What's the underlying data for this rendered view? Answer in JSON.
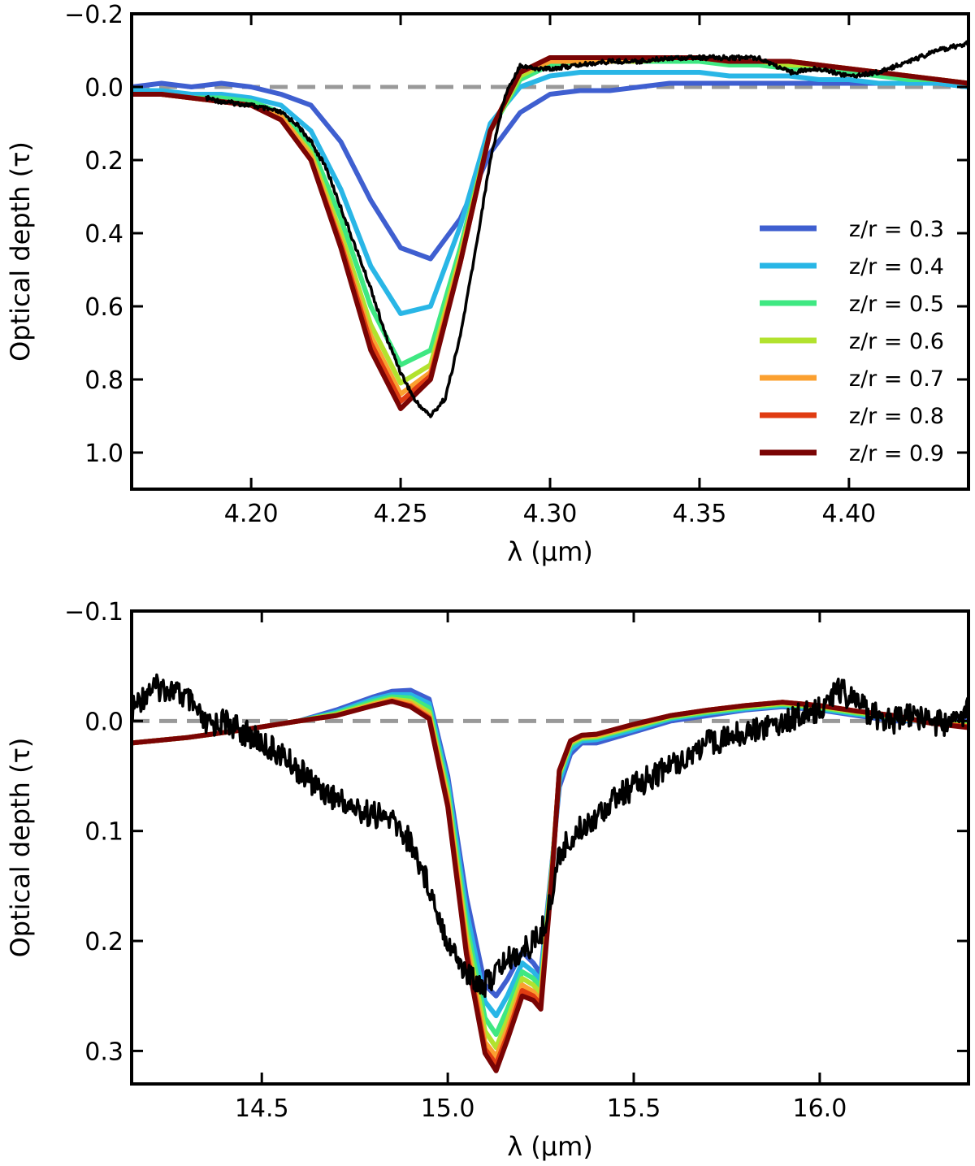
{
  "chart_data": [
    {
      "type": "line",
      "panel": "top",
      "xlabel": "λ (μm)",
      "ylabel": "Optical depth (τ)",
      "xlim": [
        4.16,
        4.44
      ],
      "ylim": [
        1.1,
        -0.2
      ],
      "y_inverted": true,
      "grid": false,
      "legend_position": "right",
      "xticks": [
        4.2,
        4.25,
        4.3,
        4.35,
        4.4
      ],
      "xtick_labels": [
        "4.20",
        "4.25",
        "4.30",
        "4.35",
        "4.40"
      ],
      "yticks": [
        -0.2,
        0.0,
        0.2,
        0.4,
        0.6,
        0.8,
        1.0
      ],
      "ytick_labels": [
        "−0.2",
        "0.0",
        "0.2",
        "0.4",
        "0.6",
        "0.8",
        "1.0"
      ],
      "reference_line": {
        "y": 0.0,
        "style": "dashed",
        "color": "#999999"
      },
      "model_x": [
        4.16,
        4.17,
        4.18,
        4.19,
        4.2,
        4.21,
        4.22,
        4.23,
        4.24,
        4.25,
        4.26,
        4.27,
        4.28,
        4.29,
        4.3,
        4.31,
        4.32,
        4.33,
        4.34,
        4.35,
        4.36,
        4.37,
        4.38,
        4.39,
        4.4,
        4.41,
        4.42,
        4.43,
        4.44
      ],
      "series": [
        {
          "name": "z/r = 0.3",
          "color": "#3f5fd0",
          "values": [
            0.0,
            -0.01,
            0.0,
            -0.01,
            0.0,
            0.02,
            0.05,
            0.15,
            0.31,
            0.44,
            0.47,
            0.36,
            0.18,
            0.07,
            0.02,
            0.01,
            0.01,
            0.0,
            -0.01,
            -0.01,
            -0.01,
            -0.01,
            -0.01,
            -0.01,
            -0.01,
            -0.01,
            -0.01,
            -0.01,
            0.0
          ]
        },
        {
          "name": "z/r = 0.4",
          "color": "#29b6e6",
          "values": [
            0.01,
            0.01,
            0.02,
            0.02,
            0.03,
            0.05,
            0.12,
            0.28,
            0.49,
            0.62,
            0.6,
            0.38,
            0.1,
            0.0,
            -0.03,
            -0.04,
            -0.04,
            -0.04,
            -0.04,
            -0.04,
            -0.03,
            -0.03,
            -0.03,
            -0.02,
            -0.02,
            -0.01,
            -0.01,
            -0.01,
            0.0
          ]
        },
        {
          "name": "z/r = 0.5",
          "color": "#3fe882",
          "values": [
            0.02,
            0.02,
            0.03,
            0.03,
            0.04,
            0.07,
            0.16,
            0.36,
            0.6,
            0.76,
            0.72,
            0.44,
            0.12,
            -0.02,
            -0.06,
            -0.07,
            -0.07,
            -0.07,
            -0.07,
            -0.07,
            -0.06,
            -0.06,
            -0.05,
            -0.05,
            -0.04,
            -0.03,
            -0.02,
            -0.02,
            -0.01
          ]
        },
        {
          "name": "z/r = 0.6",
          "color": "#b2e22e",
          "values": [
            0.02,
            0.02,
            0.03,
            0.04,
            0.05,
            0.08,
            0.18,
            0.4,
            0.65,
            0.81,
            0.76,
            0.46,
            0.12,
            -0.03,
            -0.07,
            -0.07,
            -0.07,
            -0.07,
            -0.08,
            -0.08,
            -0.07,
            -0.07,
            -0.06,
            -0.06,
            -0.05,
            -0.04,
            -0.03,
            -0.02,
            -0.01
          ]
        },
        {
          "name": "z/r = 0.7",
          "color": "#fba030",
          "values": [
            0.02,
            0.02,
            0.03,
            0.04,
            0.05,
            0.08,
            0.19,
            0.42,
            0.68,
            0.84,
            0.78,
            0.47,
            0.12,
            -0.04,
            -0.07,
            -0.07,
            -0.07,
            -0.08,
            -0.08,
            -0.08,
            -0.07,
            -0.07,
            -0.07,
            -0.06,
            -0.05,
            -0.04,
            -0.03,
            -0.02,
            -0.01
          ]
        },
        {
          "name": "z/r = 0.8",
          "color": "#e03c12",
          "values": [
            0.02,
            0.02,
            0.03,
            0.04,
            0.05,
            0.09,
            0.2,
            0.43,
            0.7,
            0.86,
            0.79,
            0.48,
            0.12,
            -0.04,
            -0.08,
            -0.08,
            -0.08,
            -0.08,
            -0.08,
            -0.08,
            -0.07,
            -0.07,
            -0.07,
            -0.06,
            -0.05,
            -0.04,
            -0.03,
            -0.02,
            -0.01
          ]
        },
        {
          "name": "z/r = 0.9",
          "color": "#7a0404",
          "values": [
            0.02,
            0.02,
            0.03,
            0.04,
            0.05,
            0.09,
            0.2,
            0.44,
            0.72,
            0.88,
            0.8,
            0.48,
            0.12,
            -0.04,
            -0.08,
            -0.08,
            -0.08,
            -0.08,
            -0.08,
            -0.08,
            -0.07,
            -0.07,
            -0.07,
            -0.06,
            -0.05,
            -0.04,
            -0.03,
            -0.02,
            -0.01
          ]
        }
      ],
      "observed": {
        "color": "#000000",
        "x": [
          4.185,
          4.19,
          4.2,
          4.21,
          4.215,
          4.22,
          4.225,
          4.23,
          4.235,
          4.24,
          4.245,
          4.25,
          4.255,
          4.26,
          4.265,
          4.27,
          4.275,
          4.28,
          4.285,
          4.29,
          4.295,
          4.3,
          4.31,
          4.32,
          4.33,
          4.34,
          4.35,
          4.36,
          4.37,
          4.38,
          4.39,
          4.4,
          4.41,
          4.42,
          4.43,
          4.44
        ],
        "values": [
          0.03,
          0.04,
          0.05,
          0.07,
          0.1,
          0.15,
          0.22,
          0.33,
          0.44,
          0.55,
          0.68,
          0.78,
          0.86,
          0.9,
          0.85,
          0.68,
          0.45,
          0.2,
          0.02,
          -0.06,
          -0.05,
          -0.05,
          -0.06,
          -0.07,
          -0.07,
          -0.08,
          -0.08,
          -0.08,
          -0.08,
          -0.04,
          -0.05,
          -0.03,
          -0.04,
          -0.07,
          -0.1,
          -0.12
        ]
      }
    },
    {
      "type": "line",
      "panel": "bottom",
      "xlabel": "λ (μm)",
      "ylabel": "Optical depth (τ)",
      "xlim": [
        14.15,
        16.4
      ],
      "ylim": [
        0.33,
        -0.1
      ],
      "y_inverted": true,
      "grid": false,
      "xticks": [
        14.5,
        15.0,
        15.5,
        16.0
      ],
      "xtick_labels": [
        "14.5",
        "15.0",
        "15.5",
        "16.0"
      ],
      "yticks": [
        -0.1,
        0.0,
        0.1,
        0.2,
        0.3
      ],
      "ytick_labels": [
        "−0.1",
        "0.0",
        "0.1",
        "0.2",
        "0.3"
      ],
      "reference_line": {
        "y": 0.0,
        "style": "dashed",
        "color": "#999999"
      },
      "model_x": [
        14.15,
        14.3,
        14.45,
        14.6,
        14.7,
        14.8,
        14.85,
        14.9,
        14.95,
        15.0,
        15.05,
        15.1,
        15.13,
        15.16,
        15.2,
        15.23,
        15.25,
        15.28,
        15.3,
        15.33,
        15.36,
        15.4,
        15.5,
        15.6,
        15.7,
        15.8,
        15.9,
        16.0,
        16.1,
        16.2,
        16.3,
        16.4
      ],
      "series": [
        {
          "name": "z/r = 0.3",
          "color": "#3f5fd0",
          "values": [
            0.02,
            0.015,
            0.008,
            0.0,
            -0.01,
            -0.022,
            -0.027,
            -0.028,
            -0.02,
            0.05,
            0.16,
            0.24,
            0.25,
            0.235,
            0.21,
            0.22,
            0.23,
            0.13,
            0.06,
            0.03,
            0.02,
            0.02,
            0.01,
            0.0,
            -0.005,
            -0.01,
            -0.013,
            -0.01,
            -0.005,
            0.0,
            0.0,
            0.0
          ]
        },
        {
          "name": "z/r = 0.4",
          "color": "#29b6e6",
          "values": [
            0.02,
            0.015,
            0.008,
            0.0,
            -0.008,
            -0.02,
            -0.024,
            -0.024,
            -0.016,
            0.056,
            0.172,
            0.255,
            0.268,
            0.25,
            0.22,
            0.228,
            0.236,
            0.132,
            0.055,
            0.026,
            0.018,
            0.017,
            0.008,
            -0.002,
            -0.007,
            -0.011,
            -0.014,
            -0.011,
            -0.006,
            -0.002,
            0.001,
            0.002
          ]
        },
        {
          "name": "z/r = 0.5",
          "color": "#3fe882",
          "values": [
            0.02,
            0.015,
            0.008,
            0.0,
            -0.007,
            -0.018,
            -0.022,
            -0.021,
            -0.012,
            0.062,
            0.184,
            0.27,
            0.285,
            0.262,
            0.228,
            0.234,
            0.242,
            0.134,
            0.05,
            0.022,
            0.016,
            0.015,
            0.006,
            -0.003,
            -0.008,
            -0.012,
            -0.015,
            -0.012,
            -0.007,
            -0.003,
            0.001,
            0.003
          ]
        },
        {
          "name": "z/r = 0.6",
          "color": "#b2e22e",
          "values": [
            0.02,
            0.015,
            0.008,
            0.0,
            -0.006,
            -0.016,
            -0.02,
            -0.018,
            -0.008,
            0.068,
            0.194,
            0.282,
            0.297,
            0.272,
            0.234,
            0.24,
            0.248,
            0.136,
            0.048,
            0.02,
            0.015,
            0.014,
            0.005,
            -0.004,
            -0.009,
            -0.013,
            -0.016,
            -0.013,
            -0.008,
            -0.004,
            0.001,
            0.004
          ]
        },
        {
          "name": "z/r = 0.7",
          "color": "#fba030",
          "values": [
            0.02,
            0.015,
            0.008,
            0.0,
            -0.005,
            -0.015,
            -0.019,
            -0.016,
            -0.005,
            0.072,
            0.202,
            0.292,
            0.305,
            0.28,
            0.24,
            0.246,
            0.254,
            0.138,
            0.046,
            0.019,
            0.014,
            0.013,
            0.004,
            -0.005,
            -0.01,
            -0.014,
            -0.017,
            -0.014,
            -0.009,
            -0.004,
            0.002,
            0.005
          ]
        },
        {
          "name": "z/r = 0.8",
          "color": "#e03c12",
          "values": [
            0.02,
            0.015,
            0.008,
            0.0,
            -0.005,
            -0.014,
            -0.018,
            -0.014,
            -0.003,
            0.076,
            0.208,
            0.298,
            0.312,
            0.286,
            0.245,
            0.25,
            0.258,
            0.14,
            0.045,
            0.018,
            0.013,
            0.012,
            0.003,
            -0.005,
            -0.01,
            -0.014,
            -0.017,
            -0.014,
            -0.009,
            -0.005,
            0.002,
            0.005
          ]
        },
        {
          "name": "z/r = 0.9",
          "color": "#7a0404",
          "values": [
            0.02,
            0.015,
            0.008,
            0.0,
            -0.005,
            -0.014,
            -0.018,
            -0.013,
            -0.002,
            0.078,
            0.212,
            0.302,
            0.318,
            0.29,
            0.25,
            0.254,
            0.262,
            0.142,
            0.045,
            0.018,
            0.013,
            0.012,
            0.003,
            -0.005,
            -0.01,
            -0.014,
            -0.017,
            -0.014,
            -0.009,
            -0.005,
            0.002,
            0.006
          ]
        }
      ],
      "observed": {
        "color": "#000000",
        "x": [
          14.15,
          14.2,
          14.25,
          14.3,
          14.35,
          14.4,
          14.45,
          14.5,
          14.55,
          14.6,
          14.65,
          14.7,
          14.75,
          14.8,
          14.85,
          14.9,
          14.95,
          15.0,
          15.05,
          15.1,
          15.15,
          15.2,
          15.25,
          15.28,
          15.3,
          15.35,
          15.4,
          15.45,
          15.5,
          15.55,
          15.6,
          15.65,
          15.7,
          15.75,
          15.8,
          15.85,
          15.9,
          15.95,
          16.0,
          16.05,
          16.1,
          16.15,
          16.2,
          16.25,
          16.3,
          16.35,
          16.4
        ],
        "values": [
          -0.01,
          -0.03,
          -0.03,
          -0.02,
          0.005,
          0.0,
          0.01,
          0.02,
          0.03,
          0.045,
          0.06,
          0.07,
          0.08,
          0.085,
          0.09,
          0.11,
          0.15,
          0.2,
          0.23,
          0.24,
          0.22,
          0.21,
          0.195,
          0.16,
          0.12,
          0.1,
          0.085,
          0.07,
          0.06,
          0.05,
          0.04,
          0.03,
          0.02,
          0.015,
          0.01,
          0.005,
          0.0,
          -0.005,
          -0.01,
          -0.03,
          -0.015,
          -0.005,
          0.0,
          -0.005,
          0.0,
          0.005,
          -0.01
        ]
      }
    }
  ]
}
